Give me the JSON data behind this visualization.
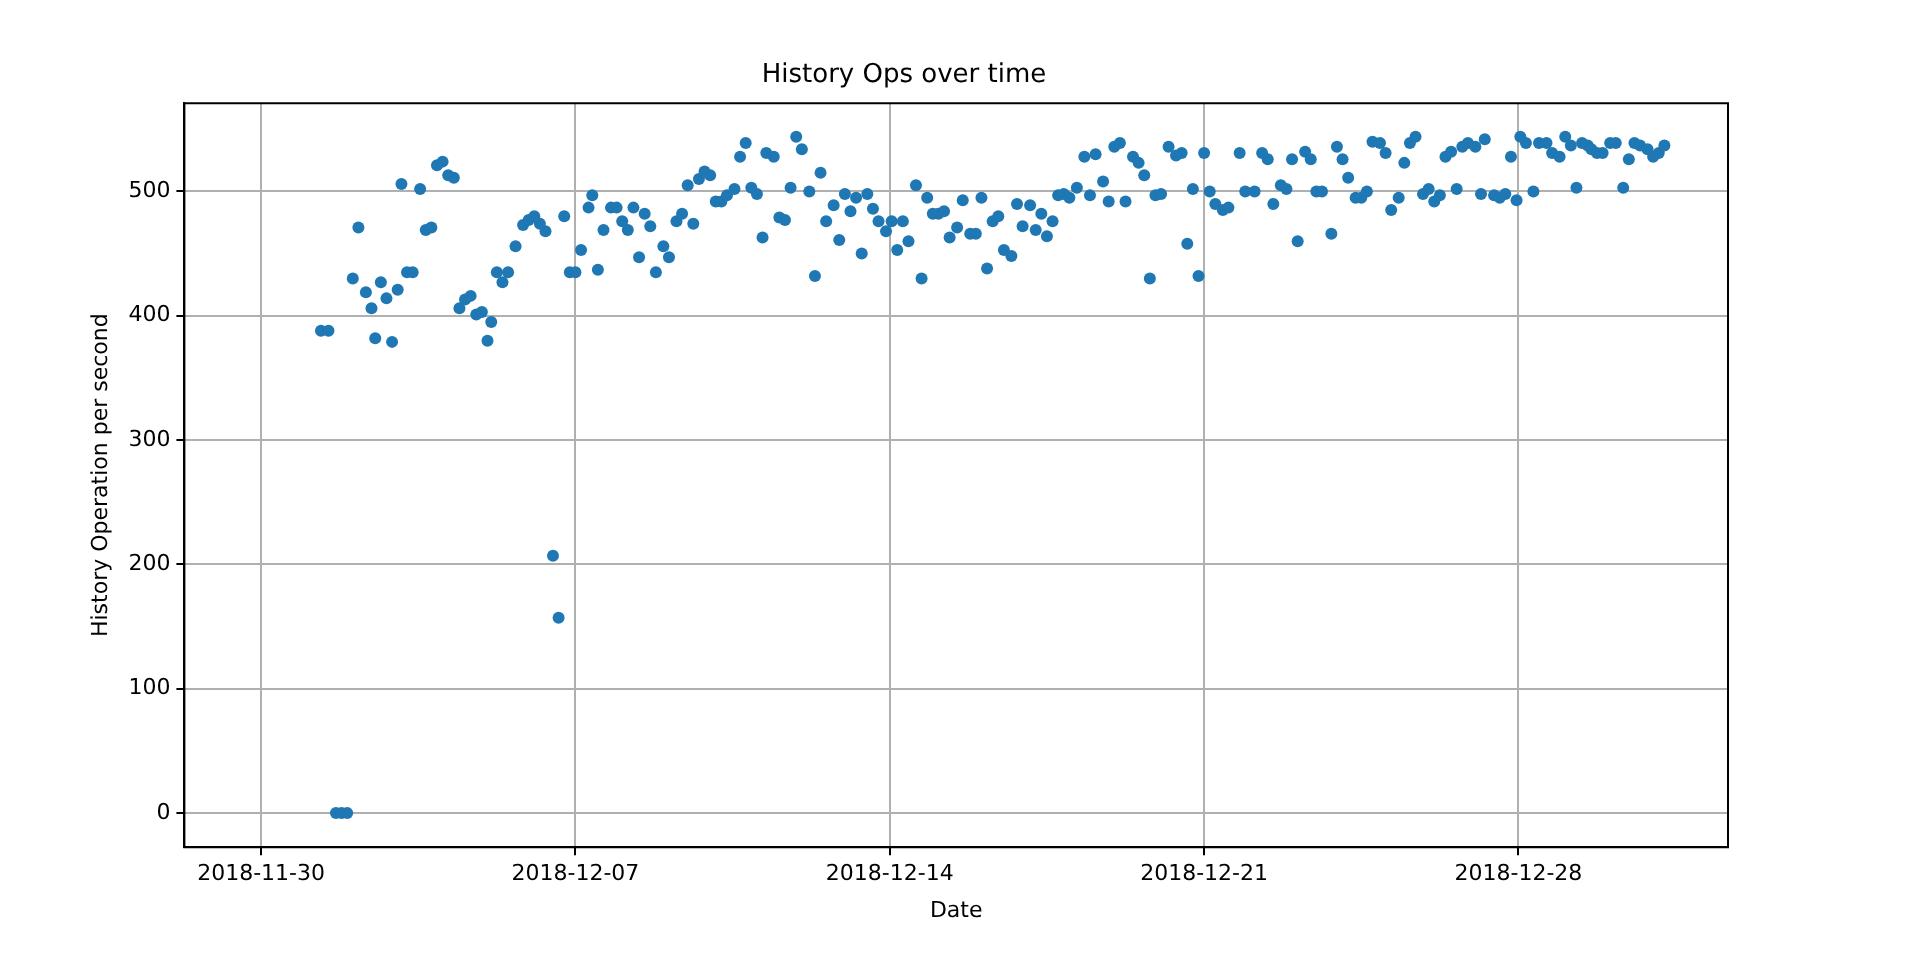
{
  "chart_data": {
    "type": "scatter",
    "title": "History Ops over time",
    "xlabel": "Date",
    "ylabel": "History Operation per second",
    "x": [
      "2018-12-01T08:00",
      "2018-12-01T12:00",
      "2018-12-01T16:00",
      "2018-12-01T19:00",
      "2018-12-01T22:00",
      "2018-12-02T01:00",
      "2018-12-02T04:00",
      "2018-12-02T08:00",
      "2018-12-02T11:00",
      "2018-12-02T13:00",
      "2018-12-02T16:00",
      "2018-12-02T19:00",
      "2018-12-02T22:00",
      "2018-12-03T01:00",
      "2018-12-03T03:00",
      "2018-12-03T06:00",
      "2018-12-03T09:00",
      "2018-12-03T13:00",
      "2018-12-03T16:00",
      "2018-12-03T19:00",
      "2018-12-03T22:00",
      "2018-12-04T01:00",
      "2018-12-04T04:00",
      "2018-12-04T07:00",
      "2018-12-04T10:00",
      "2018-12-04T13:00",
      "2018-12-04T16:00",
      "2018-12-04T19:00",
      "2018-12-04T22:00",
      "2018-12-05T01:00",
      "2018-12-05T03:00",
      "2018-12-05T06:00",
      "2018-12-05T09:00",
      "2018-12-05T12:00",
      "2018-12-05T16:00",
      "2018-12-05T20:00",
      "2018-12-05T23:00",
      "2018-12-06T02:00",
      "2018-12-06T05:00",
      "2018-12-06T08:00",
      "2018-12-06T12:00",
      "2018-12-06T15:00",
      "2018-12-06T18:00",
      "2018-12-06T21:00",
      "2018-12-07T00:00",
      "2018-12-07T03:00",
      "2018-12-07T07:00",
      "2018-12-07T09:00",
      "2018-12-07T12:00",
      "2018-12-07T15:00",
      "2018-12-07T19:00",
      "2018-12-07T22:00",
      "2018-12-08T01:00",
      "2018-12-08T04:00",
      "2018-12-08T07:00",
      "2018-12-08T10:00",
      "2018-12-08T13:00",
      "2018-12-08T16:00",
      "2018-12-08T19:00",
      "2018-12-08T23:00",
      "2018-12-09T02:00",
      "2018-12-09T06:00",
      "2018-12-09T09:00",
      "2018-12-09T12:00",
      "2018-12-09T15:00",
      "2018-12-09T18:00",
      "2018-12-09T21:00",
      "2018-12-10T00:00",
      "2018-12-10T03:00",
      "2018-12-10T06:00",
      "2018-12-10T09:00",
      "2018-12-10T13:00",
      "2018-12-10T16:00",
      "2018-12-10T19:00",
      "2018-12-10T22:00",
      "2018-12-11T01:00",
      "2018-12-11T04:00",
      "2018-12-11T06:00",
      "2018-12-11T10:00",
      "2018-12-11T13:00",
      "2018-12-11T16:00",
      "2018-12-11T19:00",
      "2018-12-11T22:00",
      "2018-12-12T01:00",
      "2018-12-12T05:00",
      "2018-12-12T08:00",
      "2018-12-12T11:00",
      "2018-12-12T14:00",
      "2018-12-12T18:00",
      "2018-12-12T21:00",
      "2018-12-13T00:00",
      "2018-12-13T03:00",
      "2018-12-13T06:00",
      "2018-12-13T09:00",
      "2018-12-13T12:00",
      "2018-12-13T15:00",
      "2018-12-13T18:00",
      "2018-12-13T22:00",
      "2018-12-14T01:00",
      "2018-12-14T04:00",
      "2018-12-14T07:00",
      "2018-12-14T10:00",
      "2018-12-14T14:00",
      "2018-12-14T17:00",
      "2018-12-14T20:00",
      "2018-12-14T23:00",
      "2018-12-15T02:00",
      "2018-12-15T05:00",
      "2018-12-15T08:00",
      "2018-12-15T12:00",
      "2018-12-15T15:00",
      "2018-12-15T19:00",
      "2018-12-15T22:00",
      "2018-12-16T01:00",
      "2018-12-16T04:00",
      "2018-12-16T07:00",
      "2018-12-16T10:00",
      "2018-12-16T13:00",
      "2018-12-16T17:00",
      "2018-12-16T20:00",
      "2018-12-16T23:00",
      "2018-12-17T03:00",
      "2018-12-17T06:00",
      "2018-12-17T09:00",
      "2018-12-17T12:00",
      "2018-12-17T15:00",
      "2018-12-17T18:00",
      "2018-12-17T21:00",
      "2018-12-18T00:00",
      "2018-12-18T04:00",
      "2018-12-18T08:00",
      "2018-12-18T11:00",
      "2018-12-18T14:00",
      "2018-12-18T18:00",
      "2018-12-18T21:00",
      "2018-12-19T00:00",
      "2018-12-19T03:00",
      "2018-12-19T06:00",
      "2018-12-19T10:00",
      "2018-12-19T13:00",
      "2018-12-19T16:00",
      "2018-12-19T19:00",
      "2018-12-19T22:00",
      "2018-12-20T01:00",
      "2018-12-20T05:00",
      "2018-12-20T09:00",
      "2018-12-20T12:00",
      "2018-12-20T15:00",
      "2018-12-20T18:00",
      "2018-12-20T21:00",
      "2018-12-21T00:00",
      "2018-12-21T03:00",
      "2018-12-21T06:00",
      "2018-12-21T10:00",
      "2018-12-21T13:00",
      "2018-12-21T19:00",
      "2018-12-21T22:00",
      "2018-12-22T03:00",
      "2018-12-22T07:00",
      "2018-12-22T10:00",
      "2018-12-22T13:00",
      "2018-12-22T17:00",
      "2018-12-22T20:00",
      "2018-12-22T23:00",
      "2018-12-23T02:00",
      "2018-12-23T06:00",
      "2018-12-23T09:00",
      "2018-12-23T12:00",
      "2018-12-23T15:00",
      "2018-12-23T20:00",
      "2018-12-23T23:00",
      "2018-12-24T02:00",
      "2018-12-24T05:00",
      "2018-12-24T09:00",
      "2018-12-24T12:00",
      "2018-12-24T15:00",
      "2018-12-24T18:00",
      "2018-12-24T22:00",
      "2018-12-25T01:00",
      "2018-12-25T04:00",
      "2018-12-25T08:00",
      "2018-12-25T11:00",
      "2018-12-25T14:00",
      "2018-12-25T17:00",
      "2018-12-25T21:00",
      "2018-12-26T00:00",
      "2018-12-26T03:00",
      "2018-12-26T06:00",
      "2018-12-26T09:00",
      "2018-12-26T12:00",
      "2018-12-26T15:00",
      "2018-12-26T18:00",
      "2018-12-26T21:00",
      "2018-12-27T01:00",
      "2018-12-27T04:00",
      "2018-12-27T06:00",
      "2018-12-27T11:00",
      "2018-12-27T14:00",
      "2018-12-27T17:00",
      "2018-12-27T20:00",
      "2018-12-27T23:00",
      "2018-12-28T01:00",
      "2018-12-28T04:00",
      "2018-12-28T08:00",
      "2018-12-28T11:00",
      "2018-12-28T15:00",
      "2018-12-28T18:00",
      "2018-12-28T22:00",
      "2018-12-29T01:00",
      "2018-12-29T04:00",
      "2018-12-29T07:00",
      "2018-12-29T10:00",
      "2018-12-29T13:00",
      "2018-12-29T15:00",
      "2018-12-29T18:00",
      "2018-12-29T21:00",
      "2018-12-30T01:00",
      "2018-12-30T04:00",
      "2018-12-30T08:00",
      "2018-12-30T11:00",
      "2018-12-30T14:00",
      "2018-12-30T17:00",
      "2018-12-30T21:00",
      "2018-12-31T00:00",
      "2018-12-31T03:00",
      "2018-12-31T06:00"
    ],
    "series": [
      {
        "color": "#1f77b4",
        "values": [
          388,
          388,
          0,
          0,
          0,
          430,
          471,
          419,
          406,
          382,
          427,
          414,
          379,
          421,
          506,
          435,
          435,
          502,
          469,
          471,
          521,
          524,
          513,
          511,
          406,
          413,
          416,
          401,
          403,
          380,
          395,
          435,
          427,
          435,
          456,
          473,
          477,
          480,
          474,
          468,
          207,
          157,
          480,
          435,
          435,
          453,
          487,
          497,
          437,
          469,
          487,
          487,
          476,
          469,
          487,
          447,
          482,
          472,
          435,
          456,
          447,
          476,
          482,
          505,
          474,
          510,
          516,
          513,
          492,
          492,
          497,
          502,
          528,
          539,
          503,
          498,
          463,
          531,
          528,
          479,
          477,
          503,
          544,
          534,
          500,
          432,
          515,
          476,
          489,
          461,
          498,
          484,
          495,
          450,
          498,
          486,
          476,
          468,
          476,
          453,
          476,
          460,
          505,
          430,
          495,
          482,
          482,
          484,
          463,
          471,
          493,
          466,
          466,
          495,
          438,
          476,
          480,
          453,
          448,
          490,
          472,
          489,
          469,
          482,
          464,
          476,
          497,
          498,
          495,
          503,
          528,
          497,
          530,
          508,
          492,
          536,
          539,
          492,
          528,
          523,
          513,
          430,
          497,
          498,
          536,
          529,
          531,
          458,
          502,
          432,
          531,
          500,
          490,
          485,
          487,
          531,
          500,
          500,
          531,
          526,
          490,
          505,
          502,
          526,
          460,
          532,
          526,
          500,
          500,
          466,
          536,
          526,
          511,
          495,
          495,
          500,
          540,
          539,
          531,
          485,
          495,
          523,
          539,
          544,
          498,
          502,
          492,
          497,
          528,
          532,
          502,
          536,
          539,
          536,
          498,
          542,
          497,
          495,
          498,
          528,
          493,
          544,
          539,
          500,
          539,
          539,
          531,
          528,
          544,
          537,
          503,
          539,
          537,
          534,
          531,
          531,
          539,
          539,
          503,
          526,
          539,
          537,
          534,
          528,
          531,
          537
        ]
      }
    ],
    "xlim": [
      "2018-11-28T07:00",
      "2019-01-01T16:00"
    ],
    "xticks": [
      "2018-11-30",
      "2018-12-07",
      "2018-12-14",
      "2018-12-21",
      "2018-12-28"
    ],
    "ylim": [
      -27.5,
      571
    ],
    "yticks": [
      0,
      100,
      200,
      300,
      400,
      500
    ],
    "grid": true,
    "marker": "circle"
  }
}
